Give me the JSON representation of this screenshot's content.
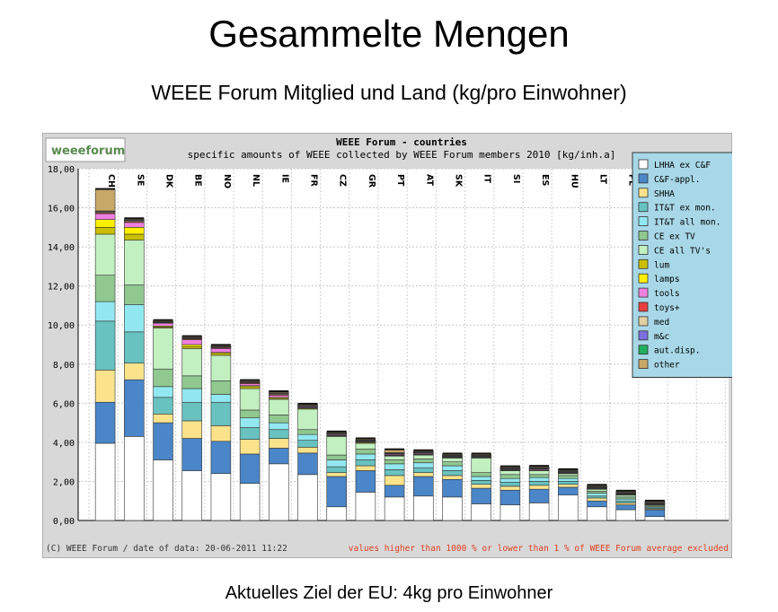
{
  "slide": {
    "title": "Gesammelte Mengen",
    "subtitle": "WEEE Forum Mitglied und Land (kg/pro Einwohner)",
    "footer": "Aktuelles Ziel der EU: 4kg pro Einwohner"
  },
  "chart_data": {
    "type": "bar",
    "stacked": true,
    "logo_text": "weeeforum",
    "title": "WEEE Forum - countries",
    "subtitle": "specific amounts of WEEE collected by WEEE Forum members 2010 [kg/inh.a]",
    "ylim": [
      0,
      18
    ],
    "yticks": [
      0,
      2,
      4,
      6,
      8,
      10,
      12,
      14,
      16,
      18
    ],
    "ytick_labels": [
      "0,00",
      "2,00",
      "4,00",
      "6,00",
      "8,00",
      "10,00",
      "12,00",
      "14,00",
      "16,00",
      "18,00"
    ],
    "grid": true,
    "legend_position": "top-right",
    "categories": [
      "CH",
      "SE",
      "DK",
      "BE",
      "NO",
      "NL",
      "IE",
      "FR",
      "CZ",
      "GR",
      "PT",
      "AT",
      "SK",
      "IT",
      "SI",
      "ES",
      "HU",
      "LT",
      "PL",
      ""
    ],
    "series": [
      {
        "name": "LHHA ex C&F",
        "color": "#ffffff",
        "values": [
          3.95,
          4.3,
          3.1,
          2.55,
          2.4,
          1.9,
          2.9,
          2.35,
          0.7,
          1.45,
          1.2,
          1.25,
          1.2,
          0.85,
          0.8,
          0.9,
          1.3,
          0.7,
          0.55,
          0.2
        ]
      },
      {
        "name": "C&F-appl.",
        "color": "#4a86c8",
        "values": [
          2.1,
          2.9,
          1.9,
          1.65,
          1.65,
          1.5,
          0.8,
          1.1,
          1.55,
          1.1,
          0.6,
          1.0,
          0.9,
          0.8,
          0.75,
          0.7,
          0.4,
          0.3,
          0.25,
          0.35
        ]
      },
      {
        "name": "SHHA",
        "color": "#fbe38c",
        "values": [
          1.65,
          0.85,
          0.45,
          0.9,
          0.8,
          0.75,
          0.5,
          0.3,
          0.2,
          0.25,
          0.5,
          0.2,
          0.2,
          0.2,
          0.2,
          0.2,
          0.15,
          0.15,
          0.1,
          0.05
        ]
      },
      {
        "name": "IT&T ex mon.",
        "color": "#68c2c0",
        "values": [
          2.5,
          1.6,
          0.85,
          0.95,
          1.2,
          0.6,
          0.45,
          0.35,
          0.3,
          0.3,
          0.3,
          0.25,
          0.25,
          0.2,
          0.2,
          0.2,
          0.15,
          0.1,
          0.1,
          0.05
        ]
      },
      {
        "name": "IT&T all mon.",
        "color": "#92e8f0",
        "values": [
          1.0,
          1.4,
          0.55,
          0.7,
          0.4,
          0.5,
          0.35,
          0.3,
          0.35,
          0.3,
          0.3,
          0.25,
          0.25,
          0.2,
          0.2,
          0.2,
          0.15,
          0.15,
          0.1,
          0.05
        ]
      },
      {
        "name": "CE ex TV",
        "color": "#90c890",
        "values": [
          1.35,
          1.0,
          0.9,
          0.65,
          0.7,
          0.4,
          0.4,
          0.25,
          0.25,
          0.25,
          0.2,
          0.2,
          0.2,
          0.2,
          0.2,
          0.15,
          0.15,
          0.1,
          0.1,
          0.05
        ]
      },
      {
        "name": "CE all TV's",
        "color": "#c2f0c0",
        "values": [
          2.1,
          2.3,
          2.1,
          1.4,
          1.3,
          1.1,
          0.8,
          1.05,
          0.95,
          0.3,
          0.2,
          0.2,
          0.2,
          0.75,
          0.2,
          0.2,
          0.1,
          0.1,
          0.1,
          0.05
        ]
      },
      {
        "name": "lum",
        "color": "#c8c000",
        "values": [
          0.35,
          0.3,
          0.05,
          0.1,
          0.1,
          0.1,
          0.05,
          0.05,
          0.03,
          0.05,
          0.02,
          0.02,
          0.02,
          0.02,
          0.02,
          0.02,
          0.02,
          0.02,
          0.02,
          0.02
        ]
      },
      {
        "name": "lamps",
        "color": "#fff000",
        "values": [
          0.4,
          0.35,
          0.05,
          0.1,
          0.05,
          0.05,
          0.05,
          0.02,
          0.02,
          0.02,
          0.02,
          0.02,
          0.02,
          0.02,
          0.02,
          0.02,
          0.02,
          0.02,
          0.02,
          0.02
        ]
      },
      {
        "name": "tools",
        "color": "#f080e0",
        "values": [
          0.3,
          0.25,
          0.15,
          0.25,
          0.2,
          0.1,
          0.1,
          0.05,
          0.05,
          0.03,
          0.05,
          0.05,
          0.03,
          0.03,
          0.03,
          0.05,
          0.03,
          0.03,
          0.03,
          0.02
        ]
      },
      {
        "name": "toys+",
        "color": "#e84040",
        "values": [
          0.05,
          0.05,
          0.02,
          0.05,
          0.05,
          0.05,
          0.05,
          0.02,
          0.02,
          0.02,
          0.02,
          0.02,
          0.02,
          0.02,
          0.02,
          0.02,
          0.02,
          0.02,
          0.02,
          0.02
        ]
      },
      {
        "name": "med",
        "color": "#e0d0a0",
        "values": [
          0.05,
          0.05,
          0.02,
          0.02,
          0.02,
          0.02,
          0.05,
          0.02,
          0.02,
          0.02,
          0.02,
          0.02,
          0.02,
          0.02,
          0.02,
          0.02,
          0.02,
          0.02,
          0.02,
          0.02
        ]
      },
      {
        "name": "m&c",
        "color": "#7a6ee0",
        "values": [
          0.02,
          0.02,
          0.02,
          0.02,
          0.02,
          0.02,
          0.02,
          0.02,
          0.02,
          0.02,
          0.02,
          0.02,
          0.02,
          0.02,
          0.02,
          0.02,
          0.02,
          0.02,
          0.02,
          0.02
        ]
      },
      {
        "name": "aut.disp.",
        "color": "#20b060",
        "values": [
          0.02,
          0.02,
          0.02,
          0.02,
          0.02,
          0.02,
          0.02,
          0.02,
          0.02,
          0.02,
          0.02,
          0.02,
          0.02,
          0.02,
          0.02,
          0.02,
          0.02,
          0.02,
          0.02,
          0.02
        ]
      },
      {
        "name": "other",
        "color": "#c8a868",
        "values": [
          1.1,
          0.05,
          0.05,
          0.05,
          0.05,
          0.05,
          0.05,
          0.05,
          0.05,
          0.05,
          0.15,
          0.05,
          0.05,
          0.05,
          0.05,
          0.05,
          0.05,
          0.05,
          0.05,
          0.05
        ]
      }
    ],
    "copyright": "(C) WEEE Forum / date of data: 20-06-2011 11:22",
    "note": "values higher than 1000 % or lower than 1 % of WEEE Forum average excluded",
    "colors": {
      "frame_bg": "#d8d8d8",
      "plot_bg": "#ffffff",
      "legend_bg": "#a8d8e8",
      "note_color": "#e04020",
      "text_color": "#000000"
    }
  }
}
